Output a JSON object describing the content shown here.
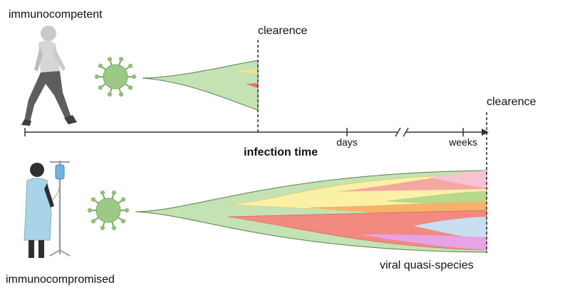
{
  "groups": {
    "top": "immunocompetent",
    "bottom": "immunocompromised"
  },
  "clearance_labels": [
    "clearence",
    "clearence"
  ],
  "axis": {
    "title": "infection time",
    "ticks": [
      "days",
      "weeks"
    ]
  },
  "annotation": "viral quasi-species"
}
